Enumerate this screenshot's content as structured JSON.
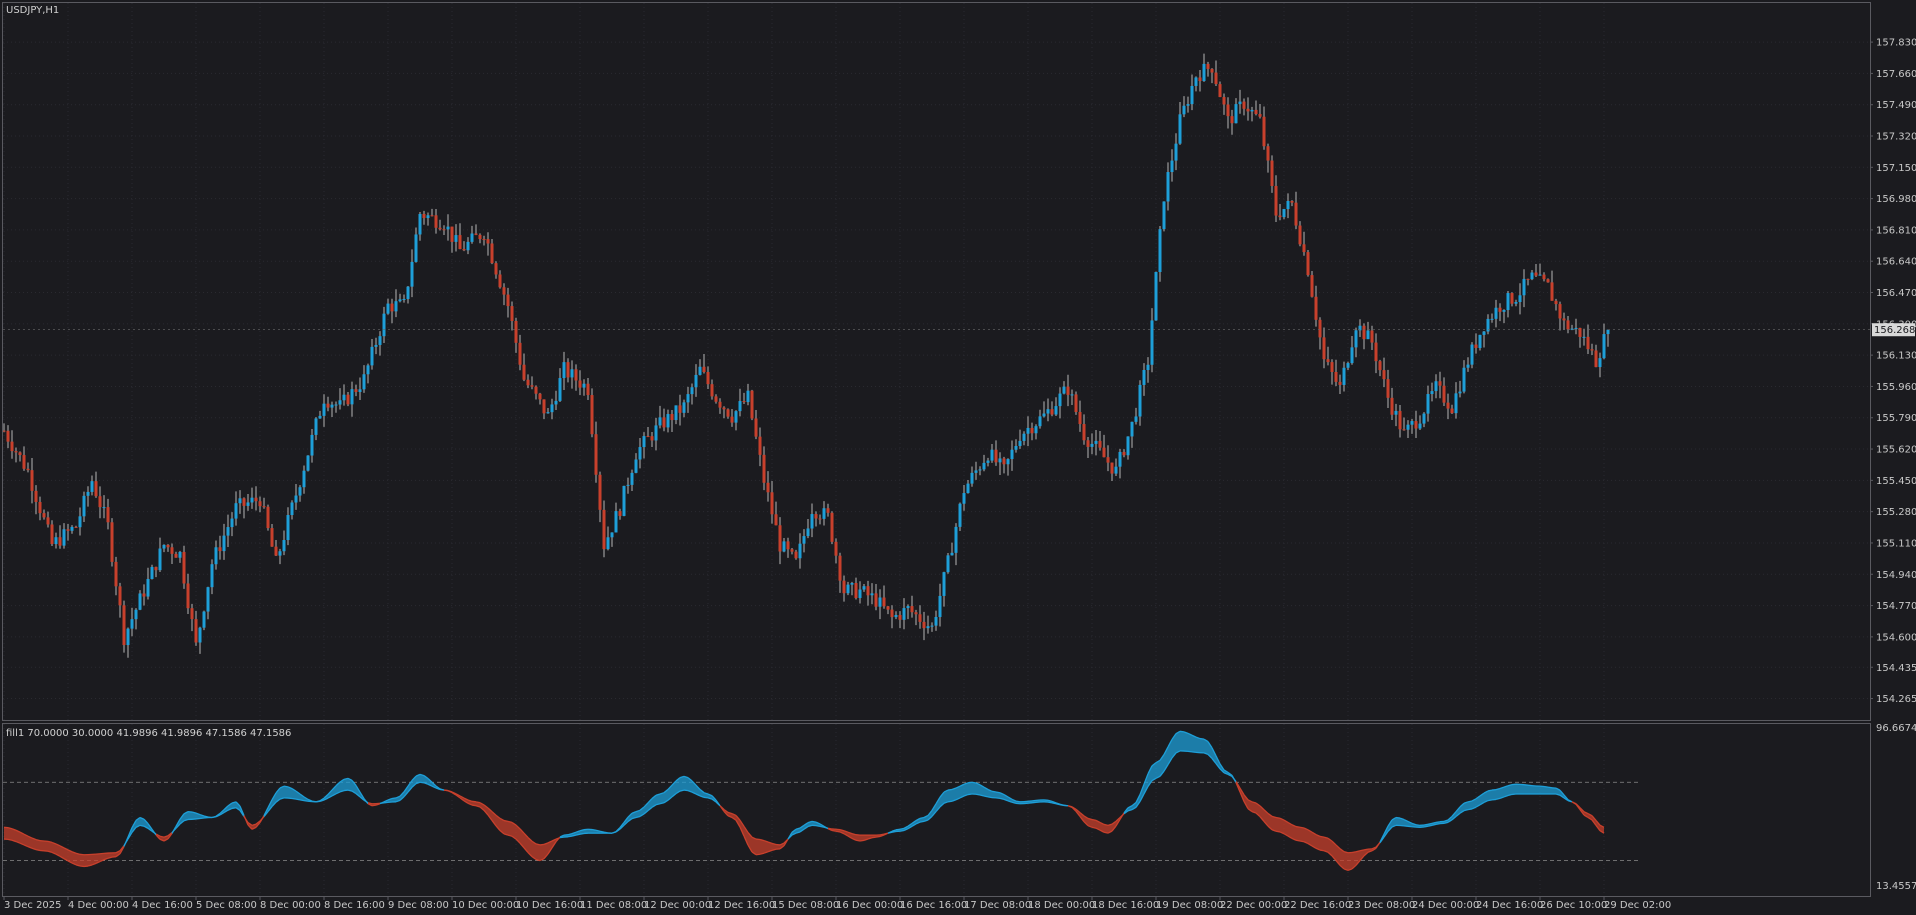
{
  "window": {
    "symbol_label": "USDJPY,H1",
    "indicator_label": "fill1 70.0000 30.0000 41.9896 41.9896 47.1586 47.1586",
    "current_price_label": "156.268"
  },
  "colors": {
    "background": "#1b1b1f",
    "grid": "#2a2a30",
    "bull": "#1e9fd8",
    "bear": "#c8402c",
    "axis_text": "#c8c8c8",
    "frame": "#5a5a60",
    "level_line": "#8a8a8a"
  },
  "chart_data": [
    {
      "type": "candlestick",
      "name": "price",
      "y_ticks": [
        "157.830",
        "157.660",
        "157.490",
        "157.320",
        "157.150",
        "156.980",
        "156.810",
        "156.640",
        "156.470",
        "156.300",
        "156.130",
        "155.960",
        "155.790",
        "155.620",
        "155.450",
        "155.280",
        "155.110",
        "154.940",
        "154.770",
        "154.600",
        "154.435",
        "154.265"
      ],
      "y_tick_values": [
        157.83,
        157.66,
        157.49,
        157.32,
        157.15,
        156.98,
        156.81,
        156.64,
        156.47,
        156.3,
        156.13,
        155.96,
        155.79,
        155.62,
        155.45,
        155.28,
        155.11,
        154.94,
        154.77,
        154.6,
        154.435,
        154.265
      ],
      "ylim": [
        154.23,
        157.95
      ],
      "x_ticks": [
        "3 Dec 2025",
        "4 Dec 00:00",
        "4 Dec 16:00",
        "5 Dec 08:00",
        "8 Dec 00:00",
        "8 Dec 16:00",
        "9 Dec 08:00",
        "10 Dec 00:00",
        "10 Dec 16:00",
        "11 Dec 08:00",
        "12 Dec 00:00",
        "12 Dec 16:00",
        "15 Dec 08:00",
        "16 Dec 00:00",
        "16 Dec 16:00",
        "17 Dec 08:00",
        "18 Dec 00:00",
        "18 Dec 16:00",
        "19 Dec 08:00",
        "22 Dec 00:00",
        "22 Dec 16:00",
        "23 Dec 08:00",
        "24 Dec 00:00",
        "24 Dec 16:00",
        "26 Dec 10:00",
        "29 Dec 02:00"
      ],
      "x_tick_index": [
        0,
        16,
        32,
        48,
        64,
        80,
        96,
        112,
        128,
        144,
        160,
        176,
        192,
        208,
        224,
        240,
        256,
        272,
        288,
        304,
        320,
        336,
        352,
        368,
        384,
        400
      ],
      "bar_count": 410,
      "last_price": 156.268,
      "close_path": [
        [
          0,
          155.72
        ],
        [
          6,
          155.5
        ],
        [
          12,
          155.1
        ],
        [
          18,
          155.2
        ],
        [
          22,
          155.45
        ],
        [
          26,
          155.2
        ],
        [
          30,
          154.6
        ],
        [
          34,
          154.8
        ],
        [
          40,
          155.1
        ],
        [
          44,
          155.05
        ],
        [
          48,
          154.55
        ],
        [
          52,
          155.0
        ],
        [
          58,
          155.3
        ],
        [
          64,
          155.35
        ],
        [
          68,
          155.0
        ],
        [
          72,
          155.3
        ],
        [
          76,
          155.6
        ],
        [
          80,
          155.9
        ],
        [
          84,
          155.85
        ],
        [
          90,
          156.0
        ],
        [
          96,
          156.4
        ],
        [
          100,
          156.4
        ],
        [
          104,
          156.9
        ],
        [
          110,
          156.85
        ],
        [
          114,
          156.7
        ],
        [
          120,
          156.8
        ],
        [
          126,
          156.4
        ],
        [
          130,
          156.0
        ],
        [
          136,
          155.8
        ],
        [
          140,
          156.05
        ],
        [
          146,
          155.95
        ],
        [
          150,
          155.1
        ],
        [
          154,
          155.3
        ],
        [
          158,
          155.6
        ],
        [
          164,
          155.75
        ],
        [
          170,
          155.85
        ],
        [
          174,
          156.05
        ],
        [
          178,
          155.9
        ],
        [
          182,
          155.8
        ],
        [
          186,
          155.9
        ],
        [
          190,
          155.45
        ],
        [
          194,
          155.1
        ],
        [
          198,
          155.0
        ],
        [
          202,
          155.3
        ],
        [
          206,
          155.25
        ],
        [
          210,
          154.85
        ],
        [
          214,
          154.85
        ],
        [
          218,
          154.8
        ],
        [
          222,
          154.7
        ],
        [
          226,
          154.75
        ],
        [
          232,
          154.65
        ],
        [
          236,
          155.0
        ],
        [
          240,
          155.4
        ],
        [
          246,
          155.6
        ],
        [
          250,
          155.5
        ],
        [
          254,
          155.7
        ],
        [
          260,
          155.8
        ],
        [
          266,
          155.95
        ],
        [
          270,
          155.7
        ],
        [
          274,
          155.6
        ],
        [
          278,
          155.5
        ],
        [
          282,
          155.75
        ],
        [
          286,
          156.1
        ],
        [
          290,
          157.0
        ],
        [
          294,
          157.4
        ],
        [
          298,
          157.65
        ],
        [
          302,
          157.7
        ],
        [
          306,
          157.4
        ],
        [
          310,
          157.5
        ],
        [
          314,
          157.4
        ],
        [
          318,
          156.9
        ],
        [
          322,
          156.95
        ],
        [
          326,
          156.6
        ],
        [
          330,
          156.1
        ],
        [
          334,
          155.95
        ],
        [
          338,
          156.3
        ],
        [
          342,
          156.2
        ],
        [
          346,
          155.9
        ],
        [
          350,
          155.7
        ],
        [
          354,
          155.8
        ],
        [
          358,
          155.95
        ],
        [
          362,
          155.85
        ],
        [
          366,
          156.1
        ],
        [
          370,
          156.3
        ],
        [
          374,
          156.4
        ],
        [
          378,
          156.45
        ],
        [
          382,
          156.55
        ],
        [
          386,
          156.5
        ],
        [
          390,
          156.3
        ],
        [
          394,
          156.25
        ],
        [
          398,
          156.1
        ],
        [
          401,
          156.268
        ]
      ]
    },
    {
      "type": "line",
      "name": "oscillator",
      "y_ticks": [
        "96.6674",
        "13.4557"
      ],
      "y_tick_values": [
        96.6674,
        13.4557
      ],
      "levels": [
        70.0,
        30.0
      ],
      "fast": [
        [
          0,
          41
        ],
        [
          10,
          35
        ],
        [
          20,
          27
        ],
        [
          28,
          32
        ],
        [
          34,
          52
        ],
        [
          40,
          40
        ],
        [
          46,
          55
        ],
        [
          52,
          52
        ],
        [
          58,
          60
        ],
        [
          62,
          46
        ],
        [
          70,
          68
        ],
        [
          78,
          60
        ],
        [
          86,
          72
        ],
        [
          92,
          58
        ],
        [
          98,
          62
        ],
        [
          104,
          74
        ],
        [
          110,
          66
        ],
        [
          118,
          58
        ],
        [
          126,
          43
        ],
        [
          134,
          30
        ],
        [
          140,
          43
        ],
        [
          146,
          46
        ],
        [
          152,
          44
        ],
        [
          158,
          55
        ],
        [
          164,
          64
        ],
        [
          170,
          73
        ],
        [
          176,
          64
        ],
        [
          182,
          52
        ],
        [
          188,
          33
        ],
        [
          194,
          36
        ],
        [
          198,
          46
        ],
        [
          202,
          50
        ],
        [
          208,
          45
        ],
        [
          214,
          40
        ],
        [
          218,
          42
        ],
        [
          224,
          46
        ],
        [
          230,
          52
        ],
        [
          236,
          66
        ],
        [
          242,
          70
        ],
        [
          248,
          65
        ],
        [
          254,
          60
        ],
        [
          260,
          61
        ],
        [
          266,
          58
        ],
        [
          272,
          47
        ],
        [
          276,
          44
        ],
        [
          282,
          58
        ],
        [
          288,
          80
        ],
        [
          294,
          96
        ],
        [
          300,
          92
        ],
        [
          306,
          75
        ],
        [
          312,
          55
        ],
        [
          318,
          45
        ],
        [
          324,
          40
        ],
        [
          330,
          35
        ],
        [
          336,
          25
        ],
        [
          342,
          35
        ],
        [
          348,
          52
        ],
        [
          354,
          48
        ],
        [
          360,
          50
        ],
        [
          366,
          60
        ],
        [
          372,
          66
        ],
        [
          378,
          69
        ],
        [
          384,
          68
        ],
        [
          388,
          67
        ],
        [
          392,
          60
        ],
        [
          396,
          52
        ],
        [
          400,
          44
        ]
      ],
      "slow": [
        [
          0,
          47
        ],
        [
          10,
          40
        ],
        [
          20,
          33
        ],
        [
          28,
          34
        ],
        [
          34,
          48
        ],
        [
          40,
          42
        ],
        [
          46,
          51
        ],
        [
          52,
          52
        ],
        [
          58,
          57
        ],
        [
          62,
          48
        ],
        [
          70,
          62
        ],
        [
          78,
          60
        ],
        [
          86,
          66
        ],
        [
          92,
          59
        ],
        [
          98,
          60
        ],
        [
          104,
          70
        ],
        [
          110,
          66
        ],
        [
          118,
          60
        ],
        [
          126,
          50
        ],
        [
          134,
          38
        ],
        [
          140,
          42
        ],
        [
          146,
          44
        ],
        [
          152,
          44
        ],
        [
          158,
          52
        ],
        [
          164,
          59
        ],
        [
          170,
          66
        ],
        [
          176,
          62
        ],
        [
          182,
          54
        ],
        [
          188,
          41
        ],
        [
          194,
          38
        ],
        [
          198,
          44
        ],
        [
          202,
          48
        ],
        [
          208,
          46
        ],
        [
          214,
          43
        ],
        [
          218,
          43
        ],
        [
          224,
          45
        ],
        [
          230,
          50
        ],
        [
          236,
          60
        ],
        [
          242,
          64
        ],
        [
          248,
          62
        ],
        [
          254,
          59
        ],
        [
          260,
          60
        ],
        [
          266,
          58
        ],
        [
          272,
          51
        ],
        [
          276,
          48
        ],
        [
          282,
          56
        ],
        [
          288,
          72
        ],
        [
          294,
          86
        ],
        [
          300,
          85
        ],
        [
          306,
          74
        ],
        [
          312,
          60
        ],
        [
          318,
          52
        ],
        [
          324,
          47
        ],
        [
          330,
          42
        ],
        [
          336,
          34
        ],
        [
          342,
          36
        ],
        [
          348,
          48
        ],
        [
          354,
          47
        ],
        [
          360,
          49
        ],
        [
          366,
          56
        ],
        [
          372,
          61
        ],
        [
          378,
          64
        ],
        [
          384,
          64
        ],
        [
          388,
          64
        ],
        [
          392,
          60
        ],
        [
          396,
          54
        ],
        [
          400,
          47
        ]
      ]
    }
  ]
}
